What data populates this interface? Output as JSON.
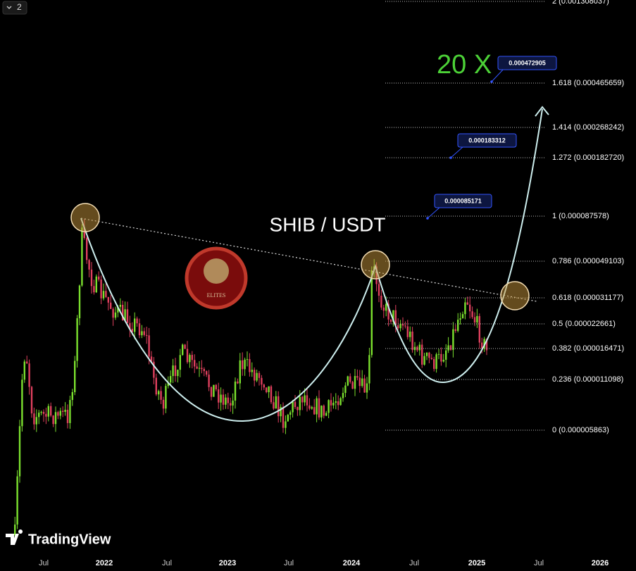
{
  "toolbar": {
    "collapse_label": "2"
  },
  "title": "SHIB / USDT",
  "multiplier": "20 X",
  "fib_levels": [
    "2 (0.001308037)",
    "1.618 (0.000465659)",
    "1.414 (0.000268242)",
    "1.272 (0.000182720)",
    "1 (0.000087578)",
    "0.786 (0.000049103)",
    "0.618 (0.000031177)",
    "0.5 (0.000022661)",
    "0.382 (0.000016471)",
    "0.236 (0.000011098)",
    "0 (0.000005863)"
  ],
  "price_callouts": [
    "0.000472905",
    "0.000183312",
    "0.000085171"
  ],
  "x_axis": [
    "Jul",
    "2022",
    "Jul",
    "2023",
    "Jul",
    "2024",
    "Jul",
    "2025",
    "Jul",
    "2026"
  ],
  "logo": "ELITES",
  "watermark": "TradingView"
}
